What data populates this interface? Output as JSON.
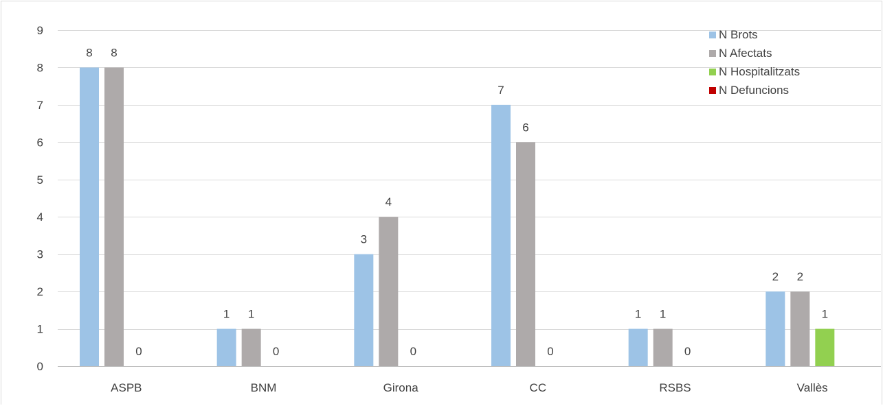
{
  "chart_data": {
    "type": "bar",
    "title": "",
    "xlabel": "",
    "ylabel": "",
    "categories": [
      "ASPB",
      "BNM",
      "Girona",
      "CC",
      "RSBS",
      "Vallès"
    ],
    "series": [
      {
        "name": "N Brots",
        "values": [
          8,
          1,
          3,
          7,
          1,
          2
        ],
        "color": "#9dc3e6",
        "labels": [
          "8",
          "1",
          "3",
          "7",
          "1",
          "2"
        ]
      },
      {
        "name": "N Afectats",
        "values": [
          8,
          1,
          4,
          6,
          1,
          2
        ],
        "color": "#aeaaaa",
        "labels": [
          "8",
          "1",
          "4",
          "6",
          "1",
          "2"
        ]
      },
      {
        "name": "N Hospitalitzats",
        "values": [
          0,
          0,
          0,
          0,
          0,
          1
        ],
        "color": "#92d050",
        "labels": [
          "0",
          "0",
          "0",
          "0",
          "0",
          "1"
        ]
      },
      {
        "name": "N Defuncions",
        "values": [
          0,
          0,
          0,
          0,
          0,
          0
        ],
        "color": "#c00000",
        "labels": [
          null,
          null,
          null,
          null,
          null,
          null
        ]
      }
    ],
    "ylim": [
      0,
      9
    ],
    "yticks": [
      "0",
      "1",
      "2",
      "3",
      "4",
      "5",
      "6",
      "7",
      "8",
      "9"
    ],
    "grid": true,
    "legend_position": "top-right"
  }
}
